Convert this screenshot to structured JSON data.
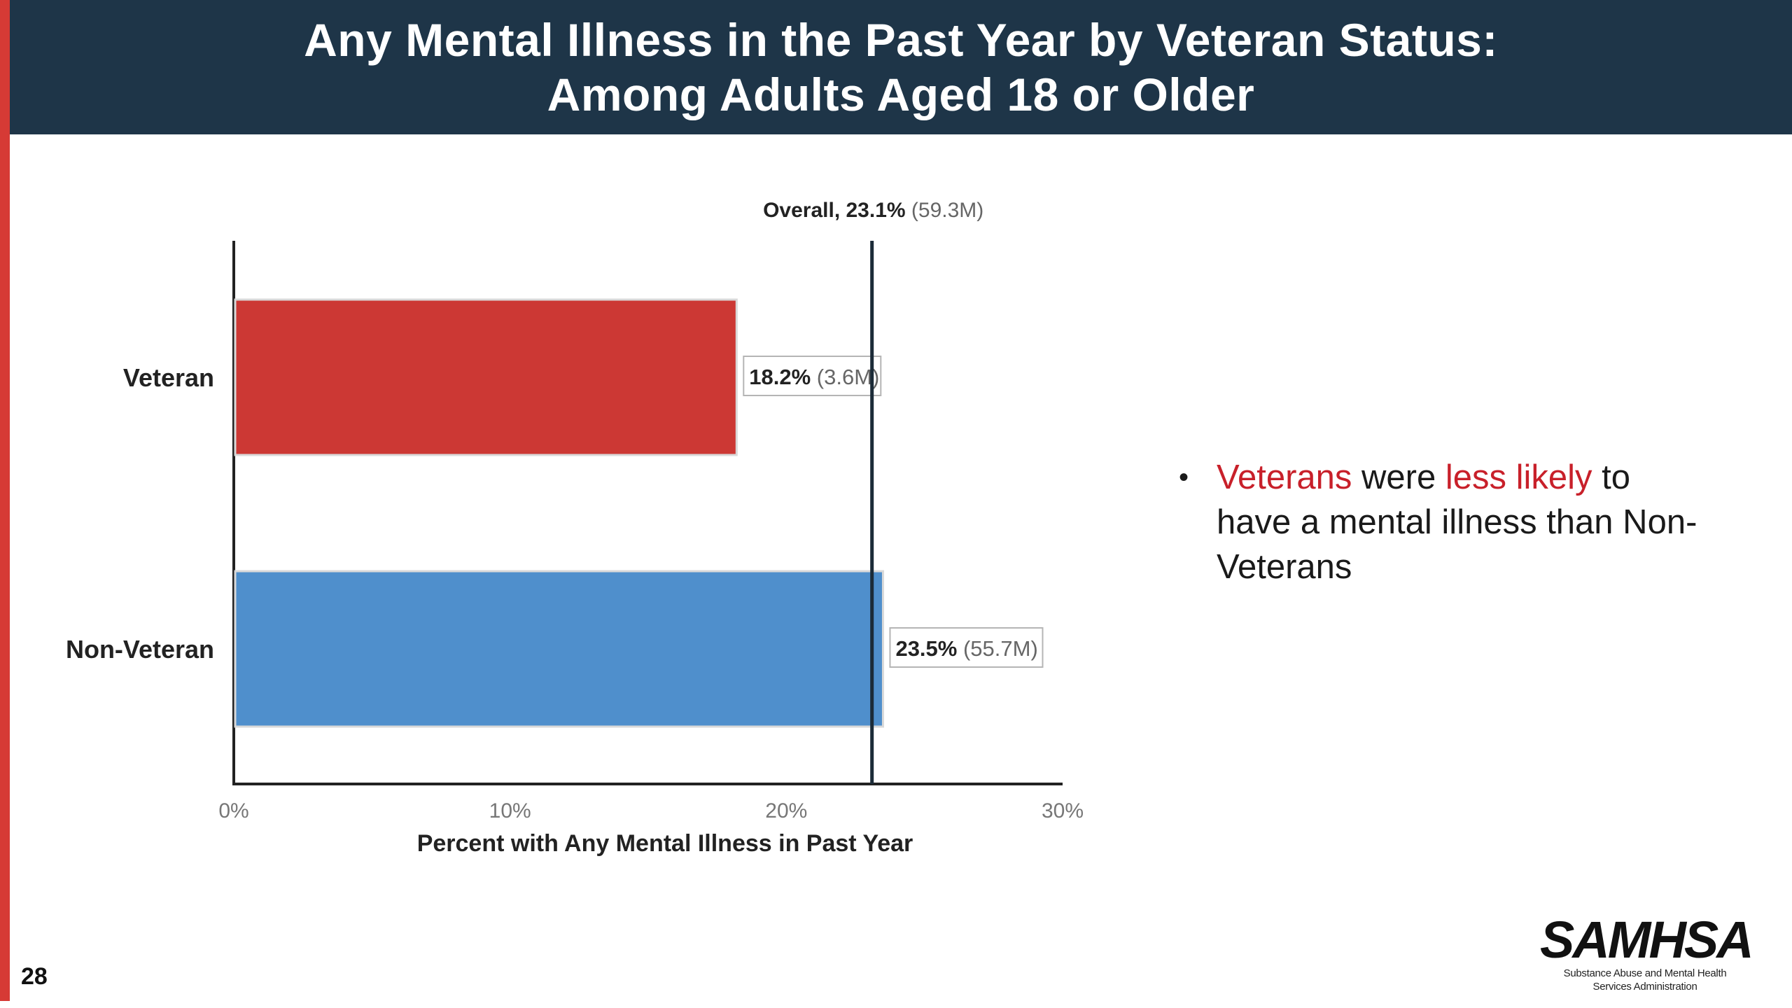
{
  "title": {
    "line1": "Any Mental Illness in the Past Year by Veteran Status:",
    "line2": "Among Adults Aged 18 or Older"
  },
  "chart_data": {
    "type": "bar",
    "orientation": "horizontal",
    "categories": [
      "Veteran",
      "Non-Veteran"
    ],
    "values": [
      18.2,
      23.5
    ],
    "counts": [
      "(3.6M)",
      "(55.7M)"
    ],
    "colors": [
      "#cc3834",
      "#4f8fcc"
    ],
    "xlabel": "Percent with Any Mental Illness in Past Year",
    "xlim": [
      0,
      30
    ],
    "xticks": [
      "0%",
      "10%",
      "20%",
      "30%"
    ],
    "reference_line": {
      "value": 23.1,
      "label": "Overall, 23.1%",
      "count": "(59.3M)"
    },
    "value_labels": [
      "18.2%",
      "23.5%"
    ]
  },
  "bullet": {
    "part1": "Veterans",
    "part2": " were ",
    "part3": "less likely",
    "part4": " to have a mental illness than Non-Veterans"
  },
  "page_number": "28",
  "logo": {
    "name": "SAMHSA",
    "subtitle_line1": "Substance Abuse and Mental Health",
    "subtitle_line2": "Services Administration"
  },
  "colors": {
    "header_bg": "#1e3548",
    "accent_red": "#d63a35",
    "bullet_red": "#c8202a"
  }
}
